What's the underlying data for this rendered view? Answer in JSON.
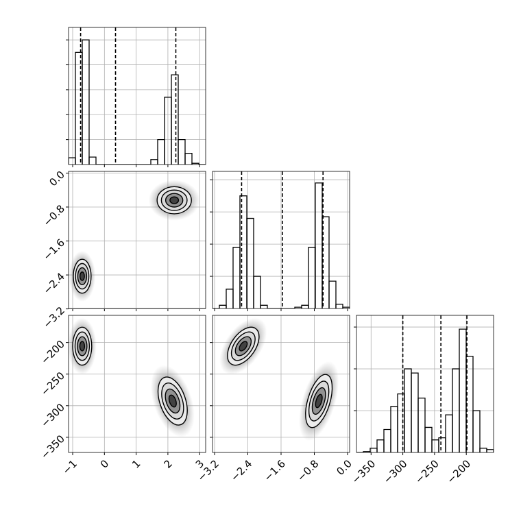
{
  "chart_data": [
    {
      "type": "histogram",
      "color": "#000000",
      "grid": true,
      "xlim": [
        -1.13,
        3.19
      ],
      "xticks": [
        -1,
        0,
        1,
        2,
        3
      ],
      "ylim": [
        0,
        5.5
      ],
      "yticks": [
        1,
        2,
        3,
        4,
        5
      ],
      "bins": [
        -1.13,
        -0.914,
        -0.698,
        -0.482,
        -0.266,
        -0.05,
        0.166,
        0.382,
        0.598,
        0.814,
        1.03,
        1.246,
        1.462,
        1.678,
        1.894,
        2.11,
        2.326,
        2.542,
        2.758,
        2.974,
        3.19
      ],
      "counts": [
        0.27,
        4.5,
        5.0,
        0.3,
        0,
        0,
        0,
        0,
        0,
        0,
        0,
        0,
        0.2,
        1.0,
        2.7,
        3.6,
        1.0,
        0.45,
        0.05,
        0
      ],
      "quantiles": [
        -0.75,
        0.35,
        2.25
      ]
    },
    {
      "type": "density",
      "grid": true,
      "xlim": [
        -1.13,
        3.19
      ],
      "xticks": [
        -1,
        0,
        1,
        2,
        3
      ],
      "ylim": [
        -3.19,
        0.04
      ],
      "yticks": [
        {
          "value": 0,
          "label": "0.0"
        },
        {
          "value": -0.8,
          "label": "−0.8"
        },
        {
          "value": -1.6,
          "label": "−1.6"
        },
        {
          "value": -2.4,
          "label": "−2.4"
        },
        {
          "value": -3.2,
          "label": "−3.2"
        }
      ],
      "clusters": [
        {
          "x": 2.2,
          "y": -0.64,
          "sx": 0.27,
          "sy": 0.16,
          "rho": 0.0
        },
        {
          "x": -0.7,
          "y": -2.43,
          "sx": 0.14,
          "sy": 0.2,
          "rho": 0.0
        }
      ]
    },
    {
      "type": "histogram",
      "color": "#000000",
      "grid": true,
      "xlim": [
        -3.25,
        0.05
      ],
      "xticks": [
        -3.2,
        -2.4,
        -1.6,
        -0.8,
        0
      ],
      "ylim": [
        0,
        4.26
      ],
      "yticks": [
        1,
        2,
        3,
        4
      ],
      "bins": [
        -3.25,
        -3.085,
        -2.92,
        -2.755,
        -2.59,
        -2.425,
        -2.26,
        -2.095,
        -1.93,
        -1.765,
        -1.6,
        -1.435,
        -1.27,
        -1.105,
        -0.94,
        -0.775,
        -0.61,
        -0.445,
        -0.28,
        -0.115,
        0.05
      ],
      "counts": [
        0,
        0.1,
        0.6,
        1.9,
        3.5,
        2.8,
        1.0,
        0.1,
        0,
        0,
        0,
        0,
        0.04,
        0.1,
        1.9,
        3.9,
        2.85,
        0.85,
        0.13,
        0.04
      ],
      "quantiles": [
        -2.55,
        -1.57,
        -0.59
      ]
    },
    {
      "type": "density",
      "grid": true,
      "xlim": [
        -1.13,
        3.19
      ],
      "xticks": [
        {
          "value": -1,
          "label": "−1"
        },
        0,
        1,
        2,
        3
      ],
      "ylim": [
        -374,
        -157
      ],
      "yticks": [
        {
          "value": -350,
          "label": "−350"
        },
        {
          "value": -300,
          "label": "−300"
        },
        {
          "value": -250,
          "label": "−250"
        },
        {
          "value": -200,
          "label": "−200"
        }
      ],
      "clusters": [
        {
          "x": -0.7,
          "y": -205.8,
          "sx": 0.15,
          "sy": 15,
          "rho": 0.0
        },
        {
          "x": 2.15,
          "y": -292.6,
          "sx": 0.23,
          "sy": 19,
          "rho": -0.4
        }
      ]
    },
    {
      "type": "density",
      "grid": true,
      "xlim": [
        -3.25,
        0.05
      ],
      "xticks": [
        {
          "value": -3.2,
          "label": "−3.2"
        },
        {
          "value": -2.4,
          "label": "−2.4"
        },
        {
          "value": -1.6,
          "label": "−1.6"
        },
        {
          "value": -0.8,
          "label": "−0.8"
        },
        {
          "value": 0,
          "label": "0.0"
        }
      ],
      "ylim": [
        -374,
        -157
      ],
      "yticks": [
        -350,
        -300,
        -250,
        -200
      ],
      "clusters": [
        {
          "x": -2.51,
          "y": -205.8,
          "sx": 0.19,
          "sy": 15,
          "rho": 0.5
        },
        {
          "x": -0.69,
          "y": -292.6,
          "sx": 0.16,
          "sy": 21,
          "rho": 0.5
        }
      ]
    },
    {
      "type": "histogram",
      "color": "#000000",
      "grid": true,
      "xlim": [
        -373,
        -157
      ],
      "xticks": [
        {
          "value": -350,
          "label": "−350"
        },
        {
          "value": -300,
          "label": "−300"
        },
        {
          "value": -250,
          "label": "−250"
        },
        {
          "value": -200,
          "label": "−200"
        }
      ],
      "ylim": [
        0,
        3.28
      ],
      "yticks": [
        1,
        2,
        3
      ],
      "bins": [
        -373,
        -362.2,
        -351.4,
        -340.6,
        -329.8,
        -319,
        -308.2,
        -297.4,
        -286.6,
        -275.8,
        -265,
        -254.2,
        -243.4,
        -232.6,
        -221.8,
        -211,
        -200.2,
        -189.4,
        -178.6,
        -167.8,
        -157
      ],
      "counts": [
        0,
        0.02,
        0.1,
        0.3,
        0.55,
        1.1,
        1.4,
        2.0,
        1.9,
        1.3,
        0.6,
        0.3,
        0.35,
        0.9,
        2.0,
        2.95,
        2.3,
        1.0,
        0.1,
        0.07
      ],
      "quantiles": [
        -300,
        -240,
        -199
      ]
    }
  ]
}
